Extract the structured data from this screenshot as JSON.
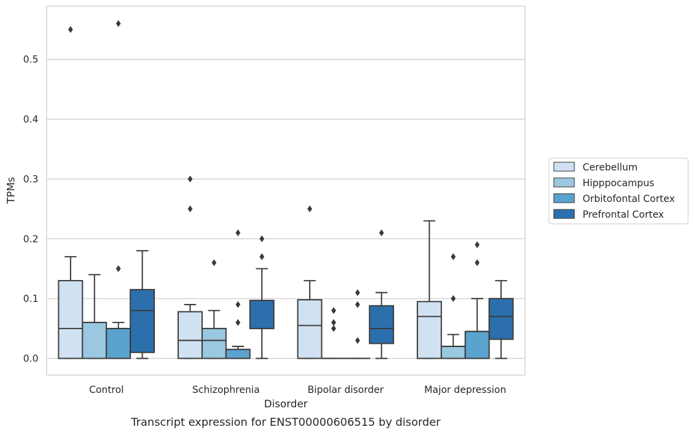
{
  "chart_data": {
    "type": "box",
    "title": "",
    "caption": "Transcript expression for ENST00000606515 by disorder",
    "xlabel": "Disorder",
    "ylabel": "TPMs",
    "ylim": [
      -0.028,
      0.589
    ],
    "yticks": [
      "0.0",
      "0.1",
      "0.2",
      "0.3",
      "0.4",
      "0.5"
    ],
    "grid": true,
    "legend_position": "right",
    "categories": [
      "Control",
      "Schizophrenia",
      "Bipolar disorder",
      "Major depression"
    ],
    "series": [
      {
        "name": "Cerebellum",
        "color": "#d0e1f2",
        "boxes": [
          {
            "q1": 0.0,
            "median": 0.05,
            "q3": 0.13,
            "whisker_low": 0.0,
            "whisker_high": 0.17,
            "outliers": [
              0.55
            ]
          },
          {
            "q1": 0.0,
            "median": 0.03,
            "q3": 0.078,
            "whisker_low": 0.0,
            "whisker_high": 0.09,
            "outliers": [
              0.25,
              0.3
            ]
          },
          {
            "q1": 0.0,
            "median": 0.055,
            "q3": 0.098,
            "whisker_low": 0.0,
            "whisker_high": 0.13,
            "outliers": [
              0.25
            ]
          },
          {
            "q1": 0.0,
            "median": 0.07,
            "q3": 0.095,
            "whisker_low": 0.0,
            "whisker_high": 0.23,
            "outliers": []
          }
        ]
      },
      {
        "name": "Hipppocampus",
        "color": "#9ac8e0",
        "boxes": [
          {
            "q1": 0.0,
            "median": 0.06,
            "q3": 0.06,
            "whisker_low": 0.0,
            "whisker_high": 0.14,
            "outliers": []
          },
          {
            "q1": 0.0,
            "median": 0.03,
            "q3": 0.05,
            "whisker_low": 0.0,
            "whisker_high": 0.08,
            "outliers": [
              0.16
            ]
          },
          {
            "q1": 0.0,
            "median": 0.0,
            "q3": 0.0,
            "whisker_low": 0.0,
            "whisker_high": 0.0,
            "outliers": [
              0.05,
              0.06,
              0.08
            ]
          },
          {
            "q1": 0.0,
            "median": 0.02,
            "q3": 0.02,
            "whisker_low": 0.0,
            "whisker_high": 0.04,
            "outliers": [
              0.1,
              0.17
            ]
          }
        ]
      },
      {
        "name": "Orbitofontal Cortex",
        "color": "#5ba3cf",
        "boxes": [
          {
            "q1": 0.0,
            "median": 0.05,
            "q3": 0.05,
            "whisker_low": 0.0,
            "whisker_high": 0.06,
            "outliers": [
              0.15,
              0.56
            ]
          },
          {
            "q1": 0.0,
            "median": 0.015,
            "q3": 0.015,
            "whisker_low": 0.0,
            "whisker_high": 0.02,
            "outliers": [
              0.06,
              0.09,
              0.21
            ]
          },
          {
            "q1": 0.0,
            "median": 0.0,
            "q3": 0.0,
            "whisker_low": 0.0,
            "whisker_high": 0.0,
            "outliers": [
              0.03,
              0.09,
              0.11
            ]
          },
          {
            "q1": 0.0,
            "median": 0.045,
            "q3": 0.045,
            "whisker_low": 0.0,
            "whisker_high": 0.1,
            "outliers": [
              0.16,
              0.19
            ]
          }
        ]
      },
      {
        "name": "Prefrontal Cortex",
        "color": "#2c6fad",
        "boxes": [
          {
            "q1": 0.01,
            "median": 0.08,
            "q3": 0.115,
            "whisker_low": 0.0,
            "whisker_high": 0.18,
            "outliers": []
          },
          {
            "q1": 0.05,
            "median": 0.05,
            "q3": 0.097,
            "whisker_low": 0.0,
            "whisker_high": 0.15,
            "outliers": [
              0.17,
              0.2
            ]
          },
          {
            "q1": 0.025,
            "median": 0.05,
            "q3": 0.088,
            "whisker_low": 0.0,
            "whisker_high": 0.11,
            "outliers": [
              0.21
            ]
          },
          {
            "q1": 0.032,
            "median": 0.07,
            "q3": 0.1,
            "whisker_low": 0.0,
            "whisker_high": 0.13,
            "outliers": []
          }
        ]
      }
    ]
  }
}
